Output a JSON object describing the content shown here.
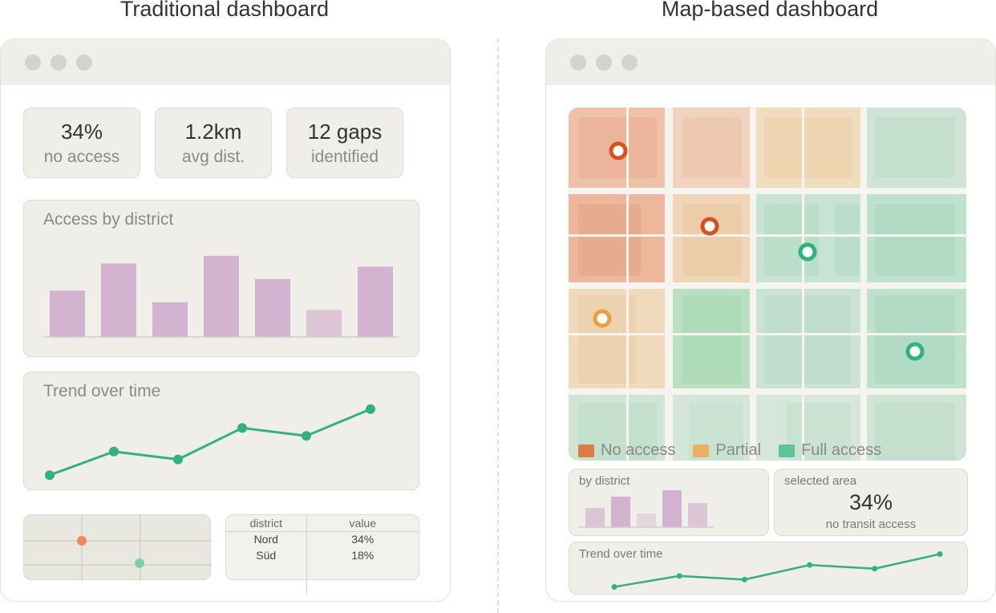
{
  "left": {
    "title": "Traditional dashboard",
    "kpis": [
      {
        "value": "34%",
        "label": "no access"
      },
      {
        "value": "1.2km",
        "label": "avg dist."
      },
      {
        "value": "12 gaps",
        "label": "identified"
      }
    ],
    "bar_card": {
      "title": "Access by district"
    },
    "trend_card": {
      "title": "Trend over time"
    },
    "table": {
      "headers": [
        "district",
        "value"
      ],
      "rows": [
        [
          "Nord",
          "34%"
        ],
        [
          "Süd",
          "18%"
        ]
      ]
    }
  },
  "right": {
    "title": "Map-based dashboard",
    "legend": [
      {
        "label": "No access",
        "color": "#e07a44"
      },
      {
        "label": "Partial",
        "color": "#eab063"
      },
      {
        "label": "Full access",
        "color": "#5fc39a"
      }
    ],
    "district_card": {
      "title": "by district"
    },
    "selected_card": {
      "title": "selected area",
      "value": "34%",
      "label": "no transit access"
    },
    "trend_card": {
      "title": "Trend over time"
    }
  },
  "colors": {
    "bar": "#d3b3cf",
    "bar_light": "#dcc6d6",
    "trend": "#2fb37c",
    "no_access": "#e07a44",
    "partial": "#eab063",
    "full_access": "#5fc39a",
    "marker_red": "#d9501a",
    "marker_orange": "#e9a23b",
    "marker_green": "#2fb37c"
  },
  "chart_data": [
    {
      "type": "bar",
      "title": "Access by district",
      "categories": [
        "1",
        "2",
        "3",
        "4",
        "5",
        "6",
        "7"
      ],
      "values": [
        60,
        95,
        45,
        105,
        75,
        35,
        91
      ],
      "ylim": [
        0,
        110
      ]
    },
    {
      "type": "line",
      "title": "Trend over time",
      "x": [
        1,
        2,
        3,
        4,
        5,
        6
      ],
      "values": [
        10,
        40,
        30,
        70,
        60,
        94
      ],
      "ylim": [
        0,
        100
      ]
    },
    {
      "type": "bar",
      "title": "by district",
      "categories": [
        "1",
        "2",
        "3",
        "4",
        "5"
      ],
      "values": [
        24,
        38,
        17,
        46,
        30
      ],
      "ylim": [
        0,
        50
      ]
    },
    {
      "type": "line",
      "title": "Trend over time",
      "x": [
        1,
        2,
        3,
        4,
        5,
        6
      ],
      "values": [
        5,
        20,
        15,
        35,
        30,
        50
      ],
      "ylim": [
        0,
        55
      ]
    }
  ]
}
